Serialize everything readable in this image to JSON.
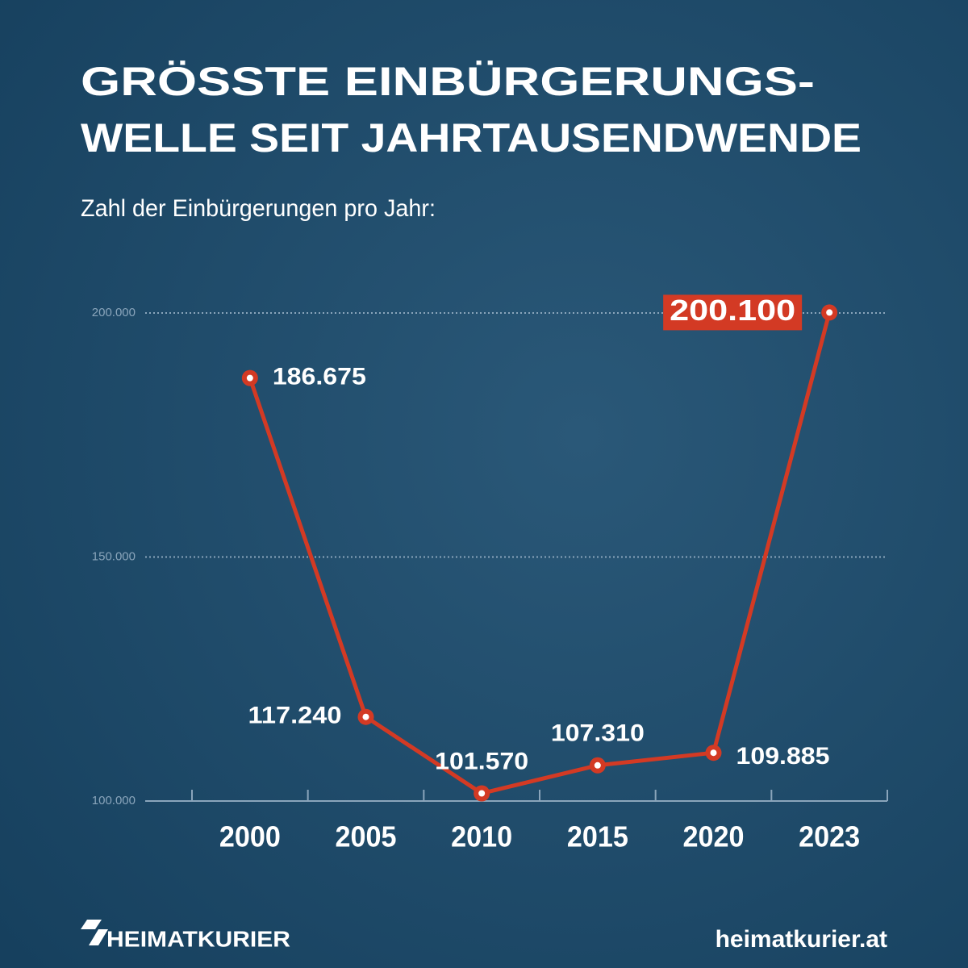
{
  "chart_data": {
    "type": "line",
    "title": [
      "GRÖSSTE EINBÜRGERUNGS-",
      "WELLE SEIT JAHRTAUSENDWENDE"
    ],
    "subtitle": "Zahl der Einbürgerungen pro Jahr:",
    "categories": [
      "2000",
      "2005",
      "2010",
      "2015",
      "2020",
      "2023"
    ],
    "series": [
      {
        "color": "#d33a24",
        "values": [
          186675,
          117240,
          101570,
          107310,
          109885,
          200100
        ],
        "value_labels": [
          "186.675",
          "117.240",
          "101.570",
          "107.310",
          "109.885",
          "200.100"
        ]
      }
    ],
    "ylim": [
      100000,
      200000
    ],
    "yticks": [
      {
        "value": 100000,
        "label": "100.000"
      },
      {
        "value": 150000,
        "label": "150.000"
      },
      {
        "value": 200000,
        "label": "200.000"
      }
    ],
    "grid": true
  },
  "footer": {
    "brand": "HEIMATKURIER",
    "url": "heimatkurier.at"
  }
}
